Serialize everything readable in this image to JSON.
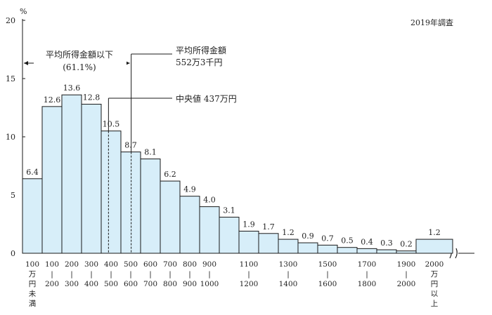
{
  "chart_data": {
    "type": "bar",
    "note": "2019年調査",
    "ylabel": "%",
    "ylim": [
      0,
      20
    ],
    "yticks": [
      "0",
      "5",
      "10",
      "15",
      "20"
    ],
    "values": [
      6.4,
      12.6,
      13.6,
      12.8,
      10.5,
      8.7,
      8.1,
      6.2,
      4.9,
      4.0,
      3.1,
      1.9,
      1.7,
      1.2,
      0.9,
      0.7,
      0.5,
      0.4,
      0.3,
      0.2,
      1.2
    ],
    "value_labels": [
      "6.4",
      "12.6",
      "13.6",
      "12.8",
      "10.5",
      "8.7",
      "8.1",
      "6.2",
      "4.9",
      "4.0",
      "3.1",
      "1.9",
      "1.7",
      "1.2",
      "0.9",
      "0.7",
      "0.5",
      "0.4",
      "0.3",
      "0.2",
      "1.2"
    ],
    "category_labels": [
      [
        "100",
        "万",
        "円",
        "未",
        "満"
      ],
      [
        "100",
        "|",
        "200"
      ],
      [
        "200",
        "|",
        "300"
      ],
      [
        "300",
        "|",
        "400"
      ],
      [
        "400",
        "|",
        "500"
      ],
      [
        "500",
        "|",
        "600"
      ],
      [
        "600",
        "|",
        "700"
      ],
      [
        "700",
        "|",
        "800"
      ],
      [
        "800",
        "|",
        "900"
      ],
      [
        "900",
        "|",
        "1000"
      ],
      [],
      [
        "1100",
        "|",
        "1200"
      ],
      [],
      [
        "1300",
        "|",
        "1400"
      ],
      [],
      [
        "1500",
        "|",
        "1600"
      ],
      [],
      [
        "1700",
        "|",
        "1800"
      ],
      [],
      [
        "1900",
        "|",
        "2000"
      ],
      [
        "2000",
        "万",
        "円",
        "以",
        "上"
      ]
    ],
    "annotations": {
      "below_average": [
        "平均所得金額以下",
        "(61.1%)"
      ],
      "average": [
        "平均所得金額",
        "552万3千円"
      ],
      "median": "中央値 437万円"
    },
    "average_value": 552.3,
    "median_value": 437
  }
}
